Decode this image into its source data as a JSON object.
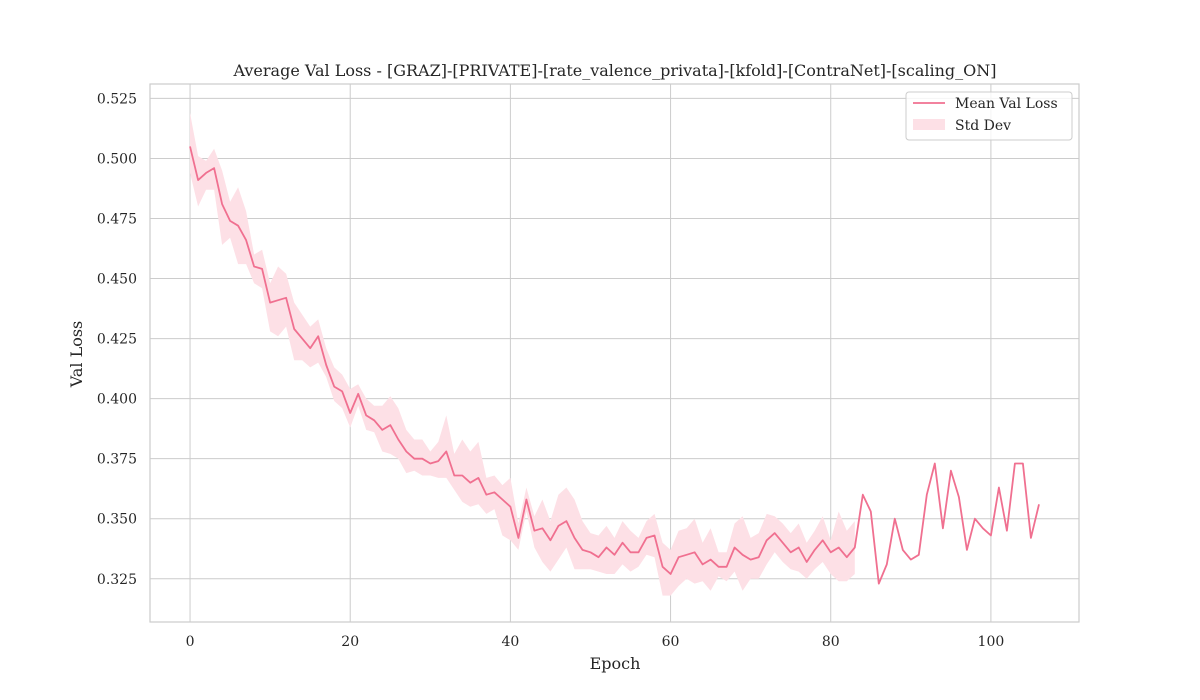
{
  "chart_data": {
    "type": "line",
    "title": "Average Val Loss - [GRAZ]-[PRIVATE]-[rate_valence_privata]-[kfold]-[ContraNet]-[scaling_ON]",
    "xlabel": "Epoch",
    "ylabel": "Val Loss",
    "xlim": [
      -5,
      111
    ],
    "ylim": [
      0.307,
      0.531
    ],
    "xticks": [
      0,
      20,
      40,
      60,
      80,
      100
    ],
    "yticks": [
      0.325,
      0.35,
      0.375,
      0.4,
      0.425,
      0.45,
      0.475,
      0.5,
      0.525
    ],
    "grid": true,
    "legend_position": "top-right",
    "colors": {
      "line": "#f07090",
      "band": "#fde0e6"
    },
    "series": [
      {
        "name": "Mean Val Loss",
        "x": [
          0,
          1,
          2,
          3,
          4,
          5,
          6,
          7,
          8,
          9,
          10,
          11,
          12,
          13,
          14,
          15,
          16,
          17,
          18,
          19,
          20,
          21,
          22,
          23,
          24,
          25,
          26,
          27,
          28,
          29,
          30,
          31,
          32,
          33,
          34,
          35,
          36,
          37,
          38,
          39,
          40,
          41,
          42,
          43,
          44,
          45,
          46,
          47,
          48,
          49,
          50,
          51,
          52,
          53,
          54,
          55,
          56,
          57,
          58,
          59,
          60,
          61,
          62,
          63,
          64,
          65,
          66,
          67,
          68,
          69,
          70,
          71,
          72,
          73,
          74,
          75,
          76,
          77,
          78,
          79,
          80,
          81,
          82,
          83,
          84,
          85,
          86,
          87,
          88,
          89,
          90,
          91,
          92,
          93,
          94,
          95,
          96,
          97,
          98,
          99,
          100,
          101,
          102,
          103,
          104,
          105,
          106
        ],
        "values": [
          0.505,
          0.491,
          0.494,
          0.496,
          0.481,
          0.474,
          0.472,
          0.466,
          0.455,
          0.454,
          0.44,
          0.441,
          0.442,
          0.429,
          0.425,
          0.421,
          0.426,
          0.414,
          0.405,
          0.403,
          0.394,
          0.402,
          0.393,
          0.391,
          0.387,
          0.389,
          0.383,
          0.378,
          0.375,
          0.375,
          0.373,
          0.374,
          0.378,
          0.368,
          0.368,
          0.365,
          0.367,
          0.36,
          0.361,
          0.358,
          0.355,
          0.342,
          0.358,
          0.345,
          0.346,
          0.341,
          0.347,
          0.349,
          0.342,
          0.337,
          0.336,
          0.334,
          0.338,
          0.335,
          0.34,
          0.336,
          0.336,
          0.342,
          0.343,
          0.33,
          0.327,
          0.334,
          0.335,
          0.336,
          0.331,
          0.333,
          0.33,
          0.33,
          0.338,
          0.335,
          0.333,
          0.334,
          0.341,
          0.344,
          0.34,
          0.336,
          0.338,
          0.332,
          0.337,
          0.341,
          0.336,
          0.338,
          0.334,
          0.338,
          0.36,
          0.353,
          0.323,
          0.331,
          0.35,
          0.337,
          0.333,
          0.335,
          0.36,
          0.373,
          0.346,
          0.37,
          0.359,
          0.337,
          0.35,
          0.346,
          0.343,
          0.363,
          0.345,
          0.373,
          0.373,
          0.342,
          0.356
        ],
        "std_x": [
          0,
          1,
          2,
          3,
          4,
          5,
          6,
          7,
          8,
          9,
          10,
          11,
          12,
          13,
          14,
          15,
          16,
          17,
          18,
          19,
          20,
          21,
          22,
          23,
          24,
          25,
          26,
          27,
          28,
          29,
          30,
          31,
          32,
          33,
          34,
          35,
          36,
          37,
          38,
          39,
          40,
          41,
          42,
          43,
          44,
          45,
          46,
          47,
          48,
          49,
          50,
          51,
          52,
          53,
          54,
          55,
          56,
          57,
          58,
          59,
          60,
          61,
          62,
          63,
          64,
          65,
          66,
          67,
          68,
          69,
          70,
          71,
          72,
          73,
          74,
          75,
          76,
          77,
          78,
          79,
          80,
          81,
          82,
          83
        ],
        "std_upper": [
          0.519,
          0.501,
          0.499,
          0.504,
          0.495,
          0.482,
          0.488,
          0.478,
          0.46,
          0.462,
          0.448,
          0.455,
          0.452,
          0.44,
          0.435,
          0.43,
          0.433,
          0.421,
          0.413,
          0.41,
          0.404,
          0.406,
          0.4,
          0.397,
          0.397,
          0.401,
          0.396,
          0.387,
          0.383,
          0.383,
          0.378,
          0.382,
          0.393,
          0.377,
          0.383,
          0.378,
          0.382,
          0.367,
          0.368,
          0.364,
          0.367,
          0.348,
          0.363,
          0.351,
          0.358,
          0.349,
          0.36,
          0.363,
          0.358,
          0.349,
          0.344,
          0.343,
          0.347,
          0.342,
          0.349,
          0.345,
          0.342,
          0.349,
          0.352,
          0.34,
          0.337,
          0.345,
          0.346,
          0.35,
          0.34,
          0.346,
          0.336,
          0.336,
          0.348,
          0.351,
          0.342,
          0.344,
          0.352,
          0.351,
          0.348,
          0.344,
          0.348,
          0.34,
          0.345,
          0.351,
          0.341,
          0.353,
          0.345,
          0.349
        ],
        "std_lower": [
          0.494,
          0.48,
          0.487,
          0.487,
          0.464,
          0.467,
          0.456,
          0.456,
          0.448,
          0.446,
          0.428,
          0.426,
          0.43,
          0.416,
          0.416,
          0.413,
          0.415,
          0.409,
          0.399,
          0.396,
          0.388,
          0.397,
          0.387,
          0.386,
          0.378,
          0.377,
          0.375,
          0.369,
          0.37,
          0.368,
          0.368,
          0.367,
          0.367,
          0.362,
          0.357,
          0.355,
          0.356,
          0.352,
          0.354,
          0.343,
          0.341,
          0.337,
          0.353,
          0.338,
          0.332,
          0.328,
          0.333,
          0.338,
          0.329,
          0.329,
          0.329,
          0.328,
          0.327,
          0.327,
          0.331,
          0.328,
          0.33,
          0.335,
          0.334,
          0.318,
          0.318,
          0.322,
          0.325,
          0.323,
          0.324,
          0.32,
          0.326,
          0.324,
          0.328,
          0.32,
          0.325,
          0.325,
          0.331,
          0.336,
          0.332,
          0.329,
          0.328,
          0.325,
          0.329,
          0.332,
          0.327,
          0.324,
          0.324,
          0.327
        ]
      }
    ],
    "legend": [
      {
        "label": "Mean Val Loss",
        "kind": "line"
      },
      {
        "label": "Std Dev",
        "kind": "band"
      }
    ]
  }
}
